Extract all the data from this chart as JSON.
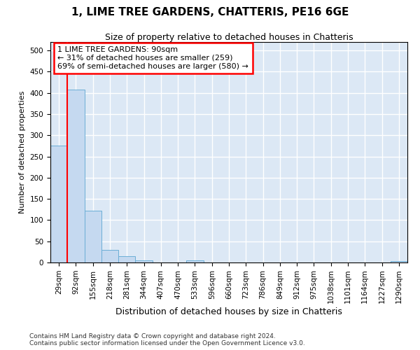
{
  "title": "1, LIME TREE GARDENS, CHATTERIS, PE16 6GE",
  "subtitle": "Size of property relative to detached houses in Chatteris",
  "xlabel": "Distribution of detached houses by size in Chatteris",
  "ylabel": "Number of detached properties",
  "bar_labels": [
    "29sqm",
    "92sqm",
    "155sqm",
    "218sqm",
    "281sqm",
    "344sqm",
    "407sqm",
    "470sqm",
    "533sqm",
    "596sqm",
    "660sqm",
    "723sqm",
    "786sqm",
    "849sqm",
    "912sqm",
    "975sqm",
    "1038sqm",
    "1101sqm",
    "1164sqm",
    "1227sqm",
    "1290sqm"
  ],
  "bar_values": [
    275,
    407,
    122,
    30,
    15,
    5,
    0,
    0,
    5,
    0,
    0,
    0,
    0,
    0,
    0,
    0,
    0,
    0,
    0,
    0,
    3
  ],
  "bar_color": "#c5d9f0",
  "bar_edge_color": "#6baed6",
  "vline_x_idx": 1,
  "vline_color": "red",
  "annotation_box_text": "1 LIME TREE GARDENS: 90sqm\n← 31% of detached houses are smaller (259)\n69% of semi-detached houses are larger (580) →",
  "annotation_box_color": "red",
  "ylim": [
    0,
    520
  ],
  "yticks": [
    0,
    50,
    100,
    150,
    200,
    250,
    300,
    350,
    400,
    450,
    500
  ],
  "background_color": "#ffffff",
  "plot_bg_color": "#dce8f5",
  "grid_color": "white",
  "footer_line1": "Contains HM Land Registry data © Crown copyright and database right 2024.",
  "footer_line2": "Contains public sector information licensed under the Open Government Licence v3.0.",
  "title_fontsize": 11,
  "subtitle_fontsize": 9,
  "xlabel_fontsize": 9,
  "ylabel_fontsize": 8,
  "tick_fontsize": 7.5,
  "footer_fontsize": 6.5,
  "ann_fontsize": 8
}
